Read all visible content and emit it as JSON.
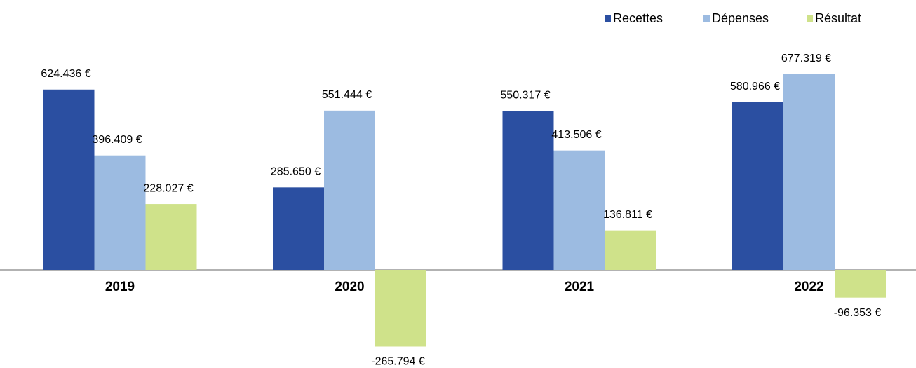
{
  "chart_data": {
    "type": "bar",
    "categories": [
      "2019",
      "2020",
      "2021",
      "2022"
    ],
    "series": [
      {
        "name": "Recettes",
        "color": "#2b4fa1",
        "values": [
          624436,
          285650,
          550317,
          580966
        ],
        "value_labels": [
          "624.436 €",
          "285.650 €",
          "550.317 €",
          "580.966 €"
        ]
      },
      {
        "name": "Dépenses",
        "color": "#9cbbe1",
        "values": [
          396409,
          551444,
          413506,
          677319
        ],
        "value_labels": [
          "396.409 €",
          "551.444 €",
          "413.506 €",
          "677.319 €"
        ]
      },
      {
        "name": "Résultat",
        "color": "#cfe28a",
        "values": [
          228027,
          -265794,
          136811,
          -96353
        ],
        "value_labels": [
          "228.027 €",
          "-265.794 €",
          "136.811 €",
          "-96.353 €"
        ]
      }
    ],
    "legend": "top-right"
  }
}
